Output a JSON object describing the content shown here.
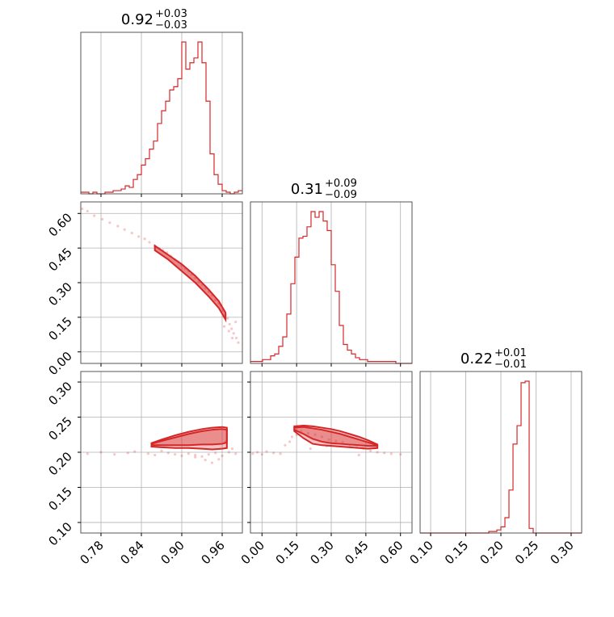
{
  "chart_data": {
    "type": "corner",
    "color": "#d62728",
    "grid": true,
    "parameters": [
      {
        "title_value": "0.92",
        "title_plus": "+0.03",
        "title_minus": "−0.03",
        "range": [
          0.75,
          0.99
        ],
        "ticks": [
          0.78,
          0.84,
          0.9,
          0.96
        ],
        "tick_labels": [
          "0.78",
          "0.84",
          "0.90",
          "0.96"
        ],
        "hist_edges_start": 0.75,
        "hist_bin_width": 0.006,
        "hist_counts": [
          1,
          1,
          0,
          1,
          0,
          0,
          1,
          1,
          2,
          2,
          3,
          5,
          4,
          9,
          12,
          18,
          22,
          28,
          33,
          44,
          52,
          58,
          65,
          67,
          72,
          95,
          78,
          82,
          85,
          95,
          82,
          58,
          25,
          12,
          6,
          2,
          1,
          0,
          1,
          2
        ]
      },
      {
        "title_value": "0.31",
        "title_plus": "+0.09",
        "title_minus": "−0.09",
        "range": [
          -0.05,
          0.65
        ],
        "ticks": [
          0.0,
          0.15,
          0.3,
          0.45,
          0.6
        ],
        "tick_labels": [
          "0.00",
          "0.15",
          "0.30",
          "0.45",
          "0.60"
        ],
        "hist_edges_start": -0.05,
        "hist_bin_width": 0.0175,
        "hist_counts": [
          1,
          1,
          1,
          2,
          2,
          4,
          5,
          9,
          14,
          26,
          42,
          56,
          66,
          67,
          72,
          80,
          77,
          80,
          75,
          70,
          52,
          38,
          20,
          10,
          7,
          5,
          3,
          2,
          2,
          1,
          1,
          1,
          1,
          1,
          1,
          1,
          0,
          0,
          0,
          0
        ]
      },
      {
        "title_value": "0.22",
        "title_plus": "+0.01",
        "title_minus": "−0.01",
        "range": [
          0.085,
          0.315
        ],
        "ticks": [
          0.1,
          0.15,
          0.2,
          0.25,
          0.3
        ],
        "tick_labels": [
          "0.10",
          "0.15",
          "0.20",
          "0.25",
          "0.30"
        ],
        "hist_edges_start": 0.085,
        "hist_bin_width": 0.00575,
        "hist_counts": [
          0,
          0,
          0,
          0,
          0,
          0,
          0,
          0,
          0,
          0,
          0,
          0,
          0,
          0,
          0,
          0,
          0,
          1,
          1,
          2,
          4,
          10,
          28,
          58,
          70,
          98,
          99,
          3,
          0,
          0,
          0,
          0,
          0,
          0,
          0,
          0,
          0,
          0,
          0,
          0
        ]
      }
    ],
    "y_tick_panels": {
      "row1": {
        "ticks": [
          0.0,
          0.15,
          0.3,
          0.45,
          0.6
        ],
        "tick_labels": [
          "0.00",
          "0.15",
          "0.30",
          "0.45",
          "0.60"
        ]
      },
      "row2": {
        "ticks": [
          0.1,
          0.15,
          0.2,
          0.25,
          0.3
        ],
        "tick_labels": [
          "0.10",
          "0.15",
          "0.20",
          "0.25",
          "0.30"
        ]
      }
    },
    "scatter_p0_p1": {
      "x": [
        0.752,
        0.76,
        0.77,
        0.782,
        0.793,
        0.805,
        0.815,
        0.826,
        0.836,
        0.845,
        0.852,
        0.86,
        0.866,
        0.872,
        0.878,
        0.884,
        0.89,
        0.895,
        0.9,
        0.905,
        0.91,
        0.915,
        0.92,
        0.925,
        0.93,
        0.935,
        0.94,
        0.945,
        0.95,
        0.955,
        0.958,
        0.962,
        0.965,
        0.968,
        0.971,
        0.974,
        0.977,
        0.981,
        0.984,
        0.963,
        0.97,
        0.975,
        0.98
      ],
      "y": [
        0.62,
        0.61,
        0.59,
        0.575,
        0.56,
        0.545,
        0.53,
        0.515,
        0.5,
        0.49,
        0.475,
        0.46,
        0.45,
        0.44,
        0.43,
        0.415,
        0.4,
        0.39,
        0.375,
        0.36,
        0.35,
        0.335,
        0.32,
        0.305,
        0.29,
        0.275,
        0.26,
        0.245,
        0.225,
        0.21,
        0.2,
        0.18,
        0.16,
        0.145,
        0.12,
        0.1,
        0.08,
        0.06,
        0.04,
        0.11,
        0.09,
        0.06,
        0.13
      ]
    },
    "band_p0_p1": {
      "x": [
        0.86,
        0.88,
        0.9,
        0.92,
        0.94,
        0.955,
        0.965
      ],
      "y_upper": [
        0.46,
        0.42,
        0.38,
        0.33,
        0.27,
        0.22,
        0.17
      ],
      "y_lower": [
        0.44,
        0.4,
        0.35,
        0.3,
        0.24,
        0.19,
        0.14
      ]
    },
    "scatter_p0_p2": {
      "x": [
        0.76,
        0.78,
        0.8,
        0.82,
        0.83,
        0.85,
        0.86,
        0.87,
        0.88,
        0.89,
        0.9,
        0.91,
        0.92,
        0.93,
        0.94,
        0.95,
        0.96,
        0.97,
        0.98,
        0.965,
        0.975,
        0.955,
        0.945,
        0.92,
        0.935
      ],
      "y": [
        0.198,
        0.2,
        0.197,
        0.199,
        0.201,
        0.198,
        0.196,
        0.202,
        0.199,
        0.197,
        0.195,
        0.198,
        0.196,
        0.194,
        0.197,
        0.199,
        0.195,
        0.2,
        0.198,
        0.215,
        0.205,
        0.19,
        0.185,
        0.193,
        0.189
      ]
    },
    "contour_p0_p2": {
      "x": [
        0.855,
        0.87,
        0.89,
        0.91,
        0.93,
        0.945,
        0.96,
        0.967
      ],
      "outer_upper": [
        0.213,
        0.218,
        0.224,
        0.229,
        0.233,
        0.235,
        0.236,
        0.235
      ],
      "outer_lower": [
        0.208,
        0.207,
        0.206,
        0.206,
        0.205,
        0.204,
        0.205,
        0.206
      ],
      "inner_upper": [
        0.212,
        0.216,
        0.221,
        0.226,
        0.23,
        0.232,
        0.233,
        0.232
      ],
      "inner_lower": [
        0.21,
        0.21,
        0.21,
        0.21,
        0.211,
        0.211,
        0.212,
        0.214
      ]
    },
    "scatter_p1_p2": {
      "x": [
        -0.04,
        -0.02,
        0.0,
        0.02,
        0.05,
        0.08,
        0.1,
        0.12,
        0.13,
        0.15,
        0.17,
        0.2,
        0.23,
        0.26,
        0.29,
        0.32,
        0.35,
        0.38,
        0.41,
        0.44,
        0.47,
        0.5,
        0.53,
        0.56,
        0.6,
        0.21,
        0.28,
        0.42
      ],
      "y": [
        0.198,
        0.2,
        0.197,
        0.201,
        0.199,
        0.198,
        0.21,
        0.215,
        0.222,
        0.225,
        0.23,
        0.227,
        0.225,
        0.222,
        0.218,
        0.216,
        0.214,
        0.21,
        0.207,
        0.205,
        0.202,
        0.2,
        0.199,
        0.198,
        0.197,
        0.205,
        0.209,
        0.196
      ]
    },
    "contour_p1_p2": {
      "x": [
        0.14,
        0.18,
        0.22,
        0.26,
        0.3,
        0.34,
        0.38,
        0.42,
        0.46,
        0.5
      ],
      "outer_upper": [
        0.237,
        0.238,
        0.237,
        0.235,
        0.233,
        0.23,
        0.226,
        0.222,
        0.217,
        0.211
      ],
      "outer_lower": [
        0.23,
        0.22,
        0.212,
        0.21,
        0.209,
        0.208,
        0.207,
        0.206,
        0.205,
        0.206
      ],
      "inner_upper": [
        0.235,
        0.236,
        0.234,
        0.232,
        0.229,
        0.226,
        0.222,
        0.218,
        0.214,
        0.21
      ],
      "inner_lower": [
        0.232,
        0.226,
        0.219,
        0.215,
        0.213,
        0.212,
        0.211,
        0.21,
        0.209,
        0.209
      ]
    }
  }
}
